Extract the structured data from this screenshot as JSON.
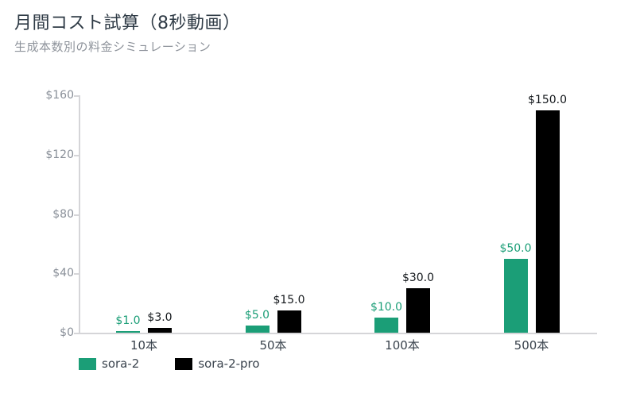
{
  "header": {
    "title": "月間コスト試算（8秒動画）",
    "subtitle": "生成本数別の料金シミュレーション"
  },
  "chart_data": {
    "type": "bar",
    "title": "月間コスト試算（8秒動画）",
    "subtitle": "生成本数別の料金シミュレーション",
    "categories": [
      "10本",
      "50本",
      "100本",
      "500本"
    ],
    "series": [
      {
        "name": "sora-2",
        "color": "#1b9e77",
        "label_color": "#1b9e77",
        "values": [
          1.0,
          5.0,
          10.0,
          50.0
        ],
        "labels": [
          "$1.0",
          "$5.0",
          "$10.0",
          "$50.0"
        ]
      },
      {
        "name": "sora-2-pro",
        "color": "#000000",
        "label_color": "#14181c",
        "values": [
          3.0,
          15.0,
          30.0,
          150.0
        ],
        "labels": [
          "$3.0",
          "$15.0",
          "$30.0",
          "$150.0"
        ]
      }
    ],
    "ylabel": "",
    "xlabel": "",
    "ylim": [
      0,
      160
    ],
    "y_tick_values": [
      0,
      40,
      80,
      120,
      160
    ],
    "y_tick_labels": [
      "$0",
      "$40",
      "$80",
      "$120",
      "$160"
    ],
    "grid": false,
    "legend_position": "bottom-left",
    "axis_color": "#d5d5d8"
  }
}
